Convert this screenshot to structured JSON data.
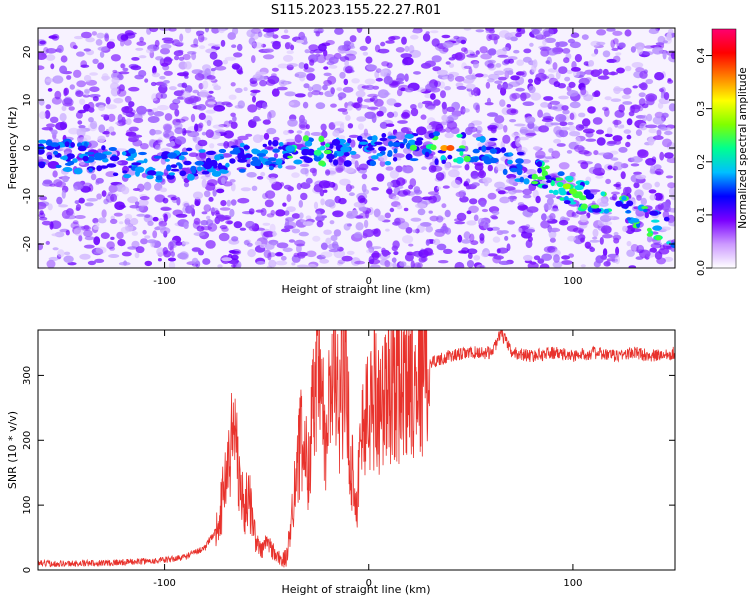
{
  "title": "S115.2023.155.22.27.R01",
  "chart_data": [
    {
      "type": "heatmap",
      "xlabel": "Height of straight line (km)",
      "ylabel": "Frequency (Hz)",
      "xlim": [
        -162,
        150
      ],
      "ylim": [
        -25,
        25
      ],
      "xticks": [
        -100,
        0,
        100
      ],
      "yticks": [
        -20,
        -10,
        0,
        10,
        20
      ],
      "colorbar": {
        "label": "Normalized spectral amplitude",
        "range": [
          0,
          0.45
        ],
        "ticks": [
          0,
          0.1,
          0.2,
          0.3,
          0.4
        ],
        "colors": [
          "#ffffff",
          "#cc99ff",
          "#7a00ff",
          "#0000ff",
          "#00bfff",
          "#00ff90",
          "#80ff00",
          "#ffff00",
          "#ff8000",
          "#ff0000",
          "#ff0070"
        ]
      },
      "ridge": {
        "description": "frequency ridge vs height",
        "x": [
          -162,
          -140,
          -110,
          -80,
          -60,
          -40,
          -20,
          0,
          20,
          40,
          60,
          80,
          100,
          120,
          150
        ],
        "y": [
          -1,
          -2,
          -4,
          -3,
          -2,
          -1,
          -0.5,
          -0.5,
          0,
          0,
          -1,
          -5,
          -9,
          -12,
          -18
        ]
      }
    },
    {
      "type": "line",
      "xlabel": "Height of straight line (km)",
      "ylabel": "SNR (10 * v/v)",
      "xlim": [
        -162,
        150
      ],
      "ylim": [
        0,
        370
      ],
      "xticks": [
        -100,
        0,
        100
      ],
      "yticks": [
        0,
        100,
        200,
        300
      ],
      "color": "#e8322c",
      "series": [
        {
          "x": [
            -162,
            -140,
            -120,
            -100,
            -90,
            -80,
            -75,
            -72,
            -70,
            -67,
            -65,
            -63,
            -61,
            -59,
            -57,
            -55,
            -52,
            -50,
            -47,
            -45,
            -42,
            -40,
            -38,
            -36,
            -33,
            -30,
            -27,
            -24,
            -21,
            -18,
            -15,
            -12,
            -9,
            -6,
            -3,
            0,
            3,
            6,
            9,
            12,
            15,
            18,
            22,
            26,
            30,
            35,
            40,
            50,
            60,
            65,
            70,
            80,
            90,
            100,
            110,
            120,
            130,
            140,
            150
          ],
          "y": [
            10,
            10,
            12,
            15,
            20,
            35,
            60,
            100,
            150,
            200,
            215,
            130,
            90,
            120,
            80,
            40,
            30,
            45,
            30,
            20,
            15,
            20,
            80,
            140,
            200,
            160,
            250,
            300,
            180,
            310,
            250,
            330,
            180,
            100,
            230,
            240,
            280,
            250,
            270,
            300,
            290,
            300,
            310,
            315,
            320,
            325,
            330,
            335,
            335,
            365,
            335,
            330,
            335,
            330,
            335,
            330,
            335,
            330,
            335
          ]
        }
      ]
    }
  ]
}
